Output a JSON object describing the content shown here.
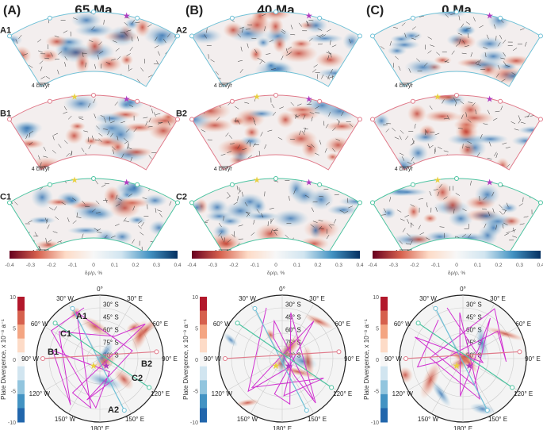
{
  "panels": [
    {
      "letter": "(A)",
      "age": "65 Ma",
      "show_section_labels": true
    },
    {
      "letter": "(B)",
      "age": "40 Ma",
      "show_section_labels": false
    },
    {
      "letter": "(C)",
      "age": "0 Ma",
      "show_section_labels": false
    }
  ],
  "sections": [
    {
      "left": "A1",
      "right": "A2",
      "color": "#6fc0d6"
    },
    {
      "left": "B1",
      "right": "B2",
      "color": "#e07a8a"
    },
    {
      "left": "C1",
      "right": "C2",
      "color": "#4cc3a0"
    }
  ],
  "scale_label": "4 cm/yr",
  "density_colorbar": {
    "ticks": [
      "-0.4",
      "-0.3",
      "-0.2",
      "-0.1",
      "0",
      "0.1",
      "0.2",
      "0.3",
      "0.4"
    ],
    "label": "δρ/ρ, %",
    "colors": [
      "#67001f",
      "#d6604d",
      "#fddbc7",
      "#f7f7f7",
      "#d1e5f0",
      "#4393c3",
      "#053061"
    ]
  },
  "divergence_colorbar": {
    "ticks": [
      "10",
      "5",
      "0",
      "-5",
      "-10"
    ],
    "label": "Plate Divergence, x 10⁻⁸ a⁻¹",
    "colors": [
      "#b2182b",
      "#d6604d",
      "#f4a582",
      "#fddbc7",
      "#f7f7f7",
      "#d1e5f0",
      "#92c5de",
      "#4393c3",
      "#2166ac"
    ]
  },
  "polar": {
    "lon_labels": [
      "0°",
      "30° E",
      "60° E",
      "90° E",
      "120° E",
      "150° E",
      "180° E",
      "150° W",
      "120° W",
      "90° W",
      "60° W",
      "30° W"
    ],
    "lat_labels": [
      "30° S",
      "45° S",
      "60° S",
      "75° S",
      "90° S"
    ]
  },
  "colors": {
    "star_magenta": "#b03cc0",
    "star_yellow": "#e8d040",
    "plate_boundary": "#d030d0"
  }
}
